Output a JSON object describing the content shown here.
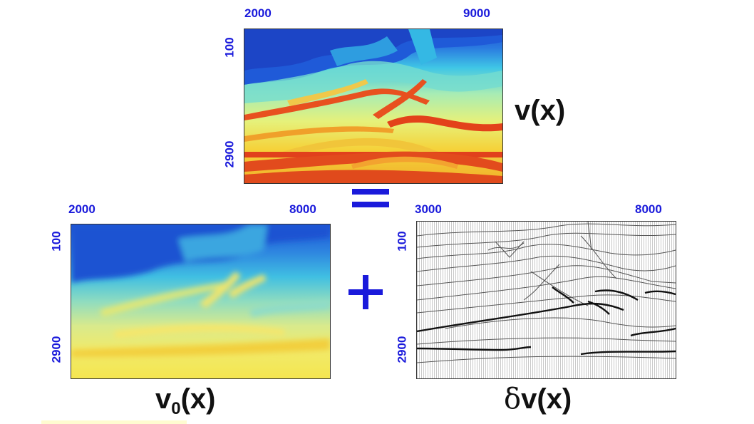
{
  "top": {
    "x_left": "2000",
    "x_right": "9000",
    "y_top": "100",
    "y_bottom": "2900",
    "label": "v(x)"
  },
  "equals": "=",
  "left": {
    "x_left": "2000",
    "x_right": "8000",
    "y_top": "100",
    "y_bottom": "2900",
    "label_main": "v",
    "label_sub": "0",
    "label_rest": "(x)"
  },
  "plus": "+",
  "right": {
    "x_left": "3000",
    "x_right": "8000",
    "y_top": "100",
    "y_bottom": "2900",
    "label_delta": "δ",
    "label_rest": "v(x)"
  },
  "colors": {
    "axis_text": "#1a1adb",
    "low_velocity": "#1f56d6",
    "high_velocity": "#e8421c"
  },
  "icons": {
    "equals": "equals-sign",
    "plus": "plus-sign"
  }
}
